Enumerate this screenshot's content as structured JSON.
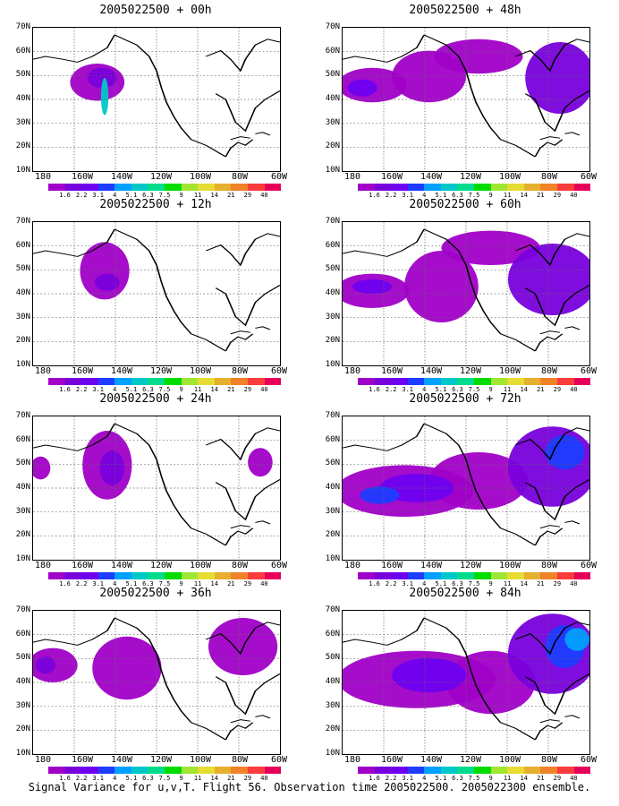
{
  "panels": [
    {
      "title": "2005022500 + 00h",
      "variance_level": "low",
      "blobs": [
        [
          0.26,
          0.38,
          0.11,
          0.13,
          0
        ],
        [
          0.28,
          0.35,
          0.06,
          0.07,
          1
        ],
        [
          0.29,
          0.48,
          0.015,
          0.13,
          5
        ]
      ]
    },
    {
      "title": "2005022500 + 48h",
      "variance_level": "moderate",
      "blobs": [
        [
          0.12,
          0.4,
          0.14,
          0.12,
          0
        ],
        [
          0.35,
          0.34,
          0.15,
          0.18,
          0
        ],
        [
          0.55,
          0.2,
          0.18,
          0.12,
          0
        ],
        [
          0.88,
          0.35,
          0.14,
          0.25,
          1
        ],
        [
          0.08,
          0.42,
          0.06,
          0.06,
          2
        ]
      ]
    },
    {
      "title": "2005022500 + 60h",
      "variance_level": "moderate",
      "blobs": [
        [
          0.12,
          0.48,
          0.15,
          0.12,
          0
        ],
        [
          0.4,
          0.45,
          0.15,
          0.25,
          0
        ],
        [
          0.6,
          0.18,
          0.2,
          0.12,
          0
        ],
        [
          0.85,
          0.4,
          0.18,
          0.25,
          1
        ],
        [
          0.12,
          0.45,
          0.08,
          0.05,
          2
        ]
      ]
    },
    {
      "title": "2005022500 + 72h",
      "variance_level": "high",
      "blobs": [
        [
          0.25,
          0.52,
          0.28,
          0.18,
          0
        ],
        [
          0.55,
          0.45,
          0.2,
          0.2,
          0
        ],
        [
          0.85,
          0.35,
          0.18,
          0.28,
          1
        ],
        [
          0.3,
          0.5,
          0.15,
          0.1,
          2
        ],
        [
          0.15,
          0.55,
          0.08,
          0.06,
          3
        ],
        [
          0.9,
          0.25,
          0.08,
          0.12,
          3
        ]
      ]
    },
    {
      "title": "2005022500 + 12h",
      "variance_level": "low",
      "blobs": [
        [
          0.29,
          0.34,
          0.1,
          0.2,
          0
        ],
        [
          0.3,
          0.42,
          0.05,
          0.06,
          1
        ]
      ]
    },
    {
      "title": "2005022500 + 24h",
      "variance_level": "low",
      "blobs": [
        [
          0.3,
          0.34,
          0.1,
          0.24,
          0
        ],
        [
          0.32,
          0.36,
          0.05,
          0.12,
          1
        ],
        [
          0.03,
          0.36,
          0.04,
          0.08,
          0
        ],
        [
          0.92,
          0.32,
          0.05,
          0.1,
          0
        ]
      ]
    },
    {
      "title": "2005022500 + 36h",
      "variance_level": "low",
      "blobs": [
        [
          0.08,
          0.38,
          0.1,
          0.12,
          0
        ],
        [
          0.38,
          0.4,
          0.14,
          0.22,
          0
        ],
        [
          0.85,
          0.25,
          0.14,
          0.2,
          0
        ],
        [
          0.05,
          0.38,
          0.04,
          0.06,
          1
        ]
      ]
    },
    {
      "title": "2005022500 + 84h",
      "variance_level": "high",
      "blobs": [
        [
          0.3,
          0.48,
          0.32,
          0.2,
          0
        ],
        [
          0.6,
          0.5,
          0.18,
          0.22,
          0
        ],
        [
          0.85,
          0.3,
          0.18,
          0.28,
          1
        ],
        [
          0.35,
          0.45,
          0.15,
          0.12,
          2
        ],
        [
          0.9,
          0.25,
          0.08,
          0.15,
          3
        ],
        [
          0.95,
          0.2,
          0.05,
          0.08,
          4
        ]
      ]
    }
  ],
  "y_ticks": [
    "70N",
    "60N",
    "50N",
    "40N",
    "30N",
    "20N",
    "10N"
  ],
  "x_ticks": [
    "180",
    "160W",
    "140W",
    "120W",
    "100W",
    "80W",
    "60W"
  ],
  "colorbar": {
    "labels": [
      "1.6",
      "2.2",
      "3.1",
      "4",
      "5.1",
      "6.3",
      "7.5",
      "9",
      "11",
      "14",
      "21",
      "29",
      "40"
    ],
    "colors": [
      "#a000c8",
      "#7800dc",
      "#6e00f0",
      "#1e3cff",
      "#00a0ff",
      "#00c8c8",
      "#00dc8c",
      "#00dc00",
      "#a0e632",
      "#e6dc32",
      "#e6af2d",
      "#f08228",
      "#fa3c3c",
      "#e6005a"
    ]
  },
  "caption": "Signal Variance for u,v,T. Flight 56. Observation time 2005022500. 2005022300 ensemble."
}
